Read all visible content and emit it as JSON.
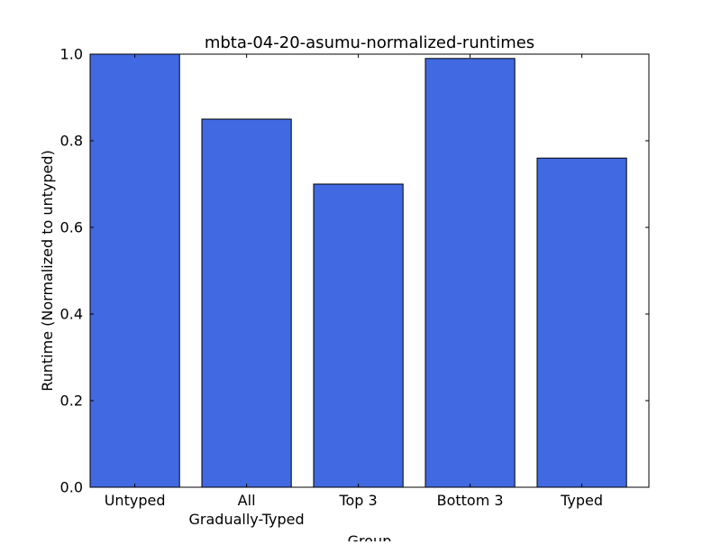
{
  "chart_data": {
    "type": "bar",
    "title": "mbta-04-20-asumu-normalized-runtimes",
    "xlabel": "Group",
    "ylabel": "Runtime (Normalized to untyped)",
    "categories": [
      [
        "Untyped"
      ],
      [
        "All",
        "Gradually-Typed"
      ],
      [
        "Top 3"
      ],
      [
        "Bottom 3"
      ],
      [
        "Typed"
      ]
    ],
    "values": [
      1.0,
      0.85,
      0.7,
      0.99,
      0.76
    ],
    "ylim": [
      0,
      1.0
    ],
    "yticks": [
      "0.0",
      "0.2",
      "0.4",
      "0.6",
      "0.8",
      "1.0"
    ],
    "grid": false,
    "bar_color": "#4169e1",
    "edge_color": "#000000"
  }
}
